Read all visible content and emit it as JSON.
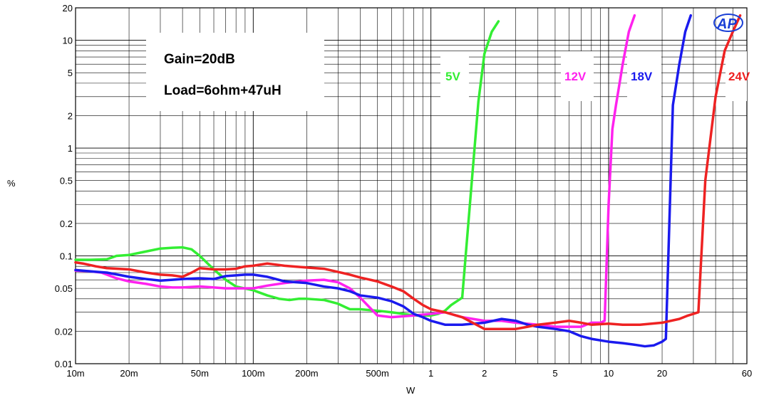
{
  "chart_data": {
    "type": "line",
    "title": "",
    "xlabel": "W",
    "ylabel": "%",
    "x_scale": "log",
    "y_scale": "log",
    "xlim": [
      0.01,
      60
    ],
    "ylim": [
      0.01,
      20
    ],
    "grid": true,
    "x_tick_values": [
      0.01,
      0.02,
      0.05,
      0.1,
      0.2,
      0.5,
      1,
      2,
      5,
      10,
      20,
      60
    ],
    "x_tick_labels": [
      "10m",
      "20m",
      "50m",
      "100m",
      "200m",
      "500m",
      "1",
      "2",
      "5",
      "10",
      "20",
      "60"
    ],
    "y_tick_values": [
      0.01,
      0.02,
      0.05,
      0.1,
      0.2,
      0.5,
      1,
      2,
      5,
      10,
      20
    ],
    "y_tick_labels": [
      "0.01",
      "0.02",
      "0.05",
      "0.1",
      "0.2",
      "0.5",
      "1",
      "2",
      "5",
      "10",
      "20"
    ],
    "annotations": [
      "Gain=20dB",
      "Load=6ohm+47uH"
    ],
    "logo_text": "AP",
    "series": [
      {
        "name": "5V",
        "color": "#33ee33",
        "points": [
          [
            0.01,
            0.092
          ],
          [
            0.012,
            0.092
          ],
          [
            0.015,
            0.093
          ],
          [
            0.017,
            0.1
          ],
          [
            0.02,
            0.102
          ],
          [
            0.025,
            0.11
          ],
          [
            0.03,
            0.117
          ],
          [
            0.035,
            0.119
          ],
          [
            0.04,
            0.12
          ],
          [
            0.045,
            0.115
          ],
          [
            0.05,
            0.1
          ],
          [
            0.06,
            0.075
          ],
          [
            0.07,
            0.06
          ],
          [
            0.08,
            0.052
          ],
          [
            0.1,
            0.048
          ],
          [
            0.12,
            0.043
          ],
          [
            0.14,
            0.04
          ],
          [
            0.16,
            0.039
          ],
          [
            0.18,
            0.04
          ],
          [
            0.2,
            0.04
          ],
          [
            0.25,
            0.039
          ],
          [
            0.3,
            0.036
          ],
          [
            0.35,
            0.032
          ],
          [
            0.4,
            0.032
          ],
          [
            0.5,
            0.031
          ],
          [
            0.6,
            0.03
          ],
          [
            0.7,
            0.029
          ],
          [
            0.8,
            0.028
          ],
          [
            0.9,
            0.028
          ],
          [
            1.0,
            0.028
          ],
          [
            1.1,
            0.029
          ],
          [
            1.2,
            0.031
          ],
          [
            1.3,
            0.035
          ],
          [
            1.4,
            0.038
          ],
          [
            1.5,
            0.041
          ],
          [
            1.7,
            0.5
          ],
          [
            1.85,
            2.7
          ],
          [
            2.0,
            7.5
          ],
          [
            2.2,
            12
          ],
          [
            2.4,
            15
          ]
        ]
      },
      {
        "name": "12V",
        "color": "#ff22ee",
        "points": [
          [
            0.01,
            0.073
          ],
          [
            0.012,
            0.072
          ],
          [
            0.014,
            0.07
          ],
          [
            0.017,
            0.062
          ],
          [
            0.02,
            0.058
          ],
          [
            0.025,
            0.055
          ],
          [
            0.03,
            0.052
          ],
          [
            0.035,
            0.051
          ],
          [
            0.04,
            0.051
          ],
          [
            0.05,
            0.052
          ],
          [
            0.06,
            0.051
          ],
          [
            0.07,
            0.05
          ],
          [
            0.08,
            0.05
          ],
          [
            0.09,
            0.05
          ],
          [
            0.1,
            0.05
          ],
          [
            0.12,
            0.053
          ],
          [
            0.15,
            0.056
          ],
          [
            0.2,
            0.059
          ],
          [
            0.25,
            0.06
          ],
          [
            0.3,
            0.057
          ],
          [
            0.35,
            0.05
          ],
          [
            0.4,
            0.041
          ],
          [
            0.5,
            0.028
          ],
          [
            0.6,
            0.027
          ],
          [
            0.8,
            0.028
          ],
          [
            1.0,
            0.029
          ],
          [
            1.2,
            0.03
          ],
          [
            1.5,
            0.027
          ],
          [
            2.0,
            0.025
          ],
          [
            2.5,
            0.025
          ],
          [
            3.0,
            0.024
          ],
          [
            4.0,
            0.023
          ],
          [
            5.0,
            0.022
          ],
          [
            6.0,
            0.022
          ],
          [
            7.0,
            0.022
          ],
          [
            8.0,
            0.024
          ],
          [
            9.0,
            0.024
          ],
          [
            9.5,
            0.025
          ],
          [
            10.0,
            0.3
          ],
          [
            10.5,
            1.5
          ],
          [
            11,
            2.5
          ],
          [
            12,
            6
          ],
          [
            13,
            12
          ],
          [
            14,
            17
          ]
        ]
      },
      {
        "name": "18V",
        "color": "#1a1aee",
        "points": [
          [
            0.01,
            0.074
          ],
          [
            0.012,
            0.072
          ],
          [
            0.015,
            0.07
          ],
          [
            0.02,
            0.064
          ],
          [
            0.025,
            0.061
          ],
          [
            0.03,
            0.059
          ],
          [
            0.035,
            0.06
          ],
          [
            0.04,
            0.061
          ],
          [
            0.05,
            0.062
          ],
          [
            0.06,
            0.061
          ],
          [
            0.07,
            0.065
          ],
          [
            0.08,
            0.066
          ],
          [
            0.09,
            0.067
          ],
          [
            0.1,
            0.067
          ],
          [
            0.12,
            0.064
          ],
          [
            0.15,
            0.058
          ],
          [
            0.2,
            0.056
          ],
          [
            0.25,
            0.052
          ],
          [
            0.3,
            0.05
          ],
          [
            0.35,
            0.047
          ],
          [
            0.4,
            0.043
          ],
          [
            0.5,
            0.041
          ],
          [
            0.6,
            0.038
          ],
          [
            0.7,
            0.034
          ],
          [
            0.8,
            0.029
          ],
          [
            0.9,
            0.027
          ],
          [
            1.0,
            0.025
          ],
          [
            1.2,
            0.023
          ],
          [
            1.5,
            0.023
          ],
          [
            2.0,
            0.024
          ],
          [
            2.5,
            0.026
          ],
          [
            3.0,
            0.025
          ],
          [
            3.5,
            0.023
          ],
          [
            4.0,
            0.022
          ],
          [
            5.0,
            0.021
          ],
          [
            6.0,
            0.02
          ],
          [
            7.0,
            0.018
          ],
          [
            8.0,
            0.017
          ],
          [
            10,
            0.016
          ],
          [
            12,
            0.0155
          ],
          [
            14,
            0.015
          ],
          [
            16,
            0.0145
          ],
          [
            18,
            0.0148
          ],
          [
            20,
            0.016
          ],
          [
            21,
            0.017
          ],
          [
            23,
            2.5
          ],
          [
            25,
            6
          ],
          [
            27,
            12
          ],
          [
            29,
            17
          ]
        ]
      },
      {
        "name": "24V",
        "color": "#ee2222",
        "points": [
          [
            0.01,
            0.087
          ],
          [
            0.011,
            0.085
          ],
          [
            0.013,
            0.08
          ],
          [
            0.015,
            0.077
          ],
          [
            0.02,
            0.075
          ],
          [
            0.025,
            0.07
          ],
          [
            0.03,
            0.067
          ],
          [
            0.035,
            0.066
          ],
          [
            0.04,
            0.064
          ],
          [
            0.045,
            0.07
          ],
          [
            0.05,
            0.077
          ],
          [
            0.06,
            0.075
          ],
          [
            0.07,
            0.075
          ],
          [
            0.08,
            0.076
          ],
          [
            0.09,
            0.08
          ],
          [
            0.1,
            0.081
          ],
          [
            0.12,
            0.085
          ],
          [
            0.15,
            0.081
          ],
          [
            0.2,
            0.078
          ],
          [
            0.25,
            0.076
          ],
          [
            0.3,
            0.071
          ],
          [
            0.35,
            0.067
          ],
          [
            0.4,
            0.063
          ],
          [
            0.5,
            0.058
          ],
          [
            0.6,
            0.052
          ],
          [
            0.7,
            0.047
          ],
          [
            0.8,
            0.04
          ],
          [
            0.9,
            0.035
          ],
          [
            1.0,
            0.032
          ],
          [
            1.2,
            0.03
          ],
          [
            1.5,
            0.027
          ],
          [
            2.0,
            0.021
          ],
          [
            2.5,
            0.021
          ],
          [
            3.0,
            0.021
          ],
          [
            3.5,
            0.022
          ],
          [
            4.0,
            0.023
          ],
          [
            5.0,
            0.024
          ],
          [
            6.0,
            0.025
          ],
          [
            7.0,
            0.024
          ],
          [
            8.0,
            0.023
          ],
          [
            10,
            0.0235
          ],
          [
            12,
            0.023
          ],
          [
            15,
            0.023
          ],
          [
            20,
            0.024
          ],
          [
            25,
            0.026
          ],
          [
            28,
            0.028
          ],
          [
            32,
            0.03
          ],
          [
            35,
            0.5
          ],
          [
            40,
            3
          ],
          [
            45,
            8
          ],
          [
            50,
            12
          ],
          [
            55,
            17
          ]
        ]
      }
    ]
  }
}
